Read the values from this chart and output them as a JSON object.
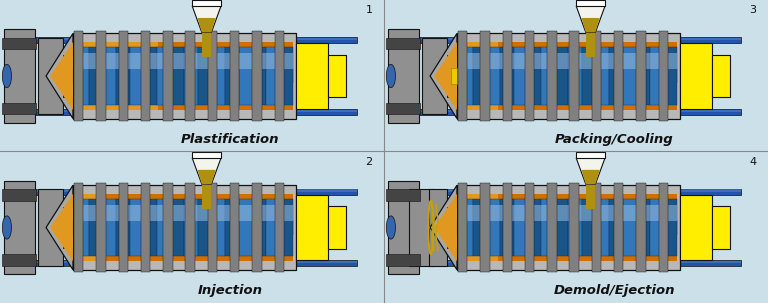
{
  "bg_color": "#cce0ea",
  "barrel_outer": "#b8b8b8",
  "barrel_inner_orange": "#d07000",
  "barrel_inner_lt": "#e09820",
  "screw_dark": "#1a5588",
  "screw_mid": "#3377bb",
  "screw_light": "#6699cc",
  "screw_highlight": "#99bbdd",
  "motor_yellow": "#ffee00",
  "motor_yellow2": "#eecc00",
  "mold_gray": "#909090",
  "mold_dark": "#707070",
  "hopper_white": "#f4f4ee",
  "pellet_gold": "#b09010",
  "pellet_lt": "#ccaa20",
  "rail_blue": "#2255aa",
  "rail_lt": "#5588cc",
  "dark": "#111111",
  "tip_gray": "#a8a8a8",
  "band_gray": "#808080",
  "band_lt": "#a0a0a0",
  "text_color": "#111111",
  "orange_tip": "#e08800",
  "labels": [
    "Plastification",
    "Injection",
    "Packing/Cooling",
    "Demold/Ejection"
  ],
  "numbers": [
    "1",
    "2",
    "3",
    "4"
  ],
  "ejection_gold": "#c8a000"
}
